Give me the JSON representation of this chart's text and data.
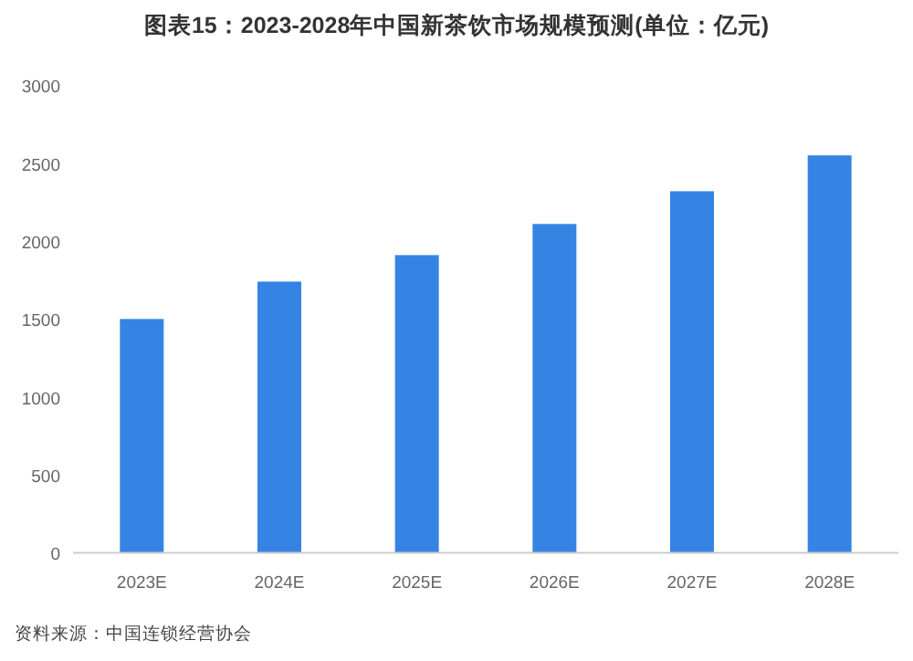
{
  "chart_data": {
    "type": "bar",
    "title": "图表15：2023-2028年中国新茶饮市场规模预测(单位：亿元)",
    "categories": [
      "2023E",
      "2024E",
      "2025E",
      "2026E",
      "2027E",
      "2028E"
    ],
    "values": [
      1500,
      1740,
      1910,
      2110,
      2320,
      2550
    ],
    "color": "#3584e4",
    "ylim": [
      0,
      3000
    ],
    "yticks": [
      0,
      500,
      1000,
      1500,
      2000,
      2500,
      3000
    ],
    "grid": false,
    "annotations": [
      "资料来源：中国连锁经营协会"
    ]
  }
}
